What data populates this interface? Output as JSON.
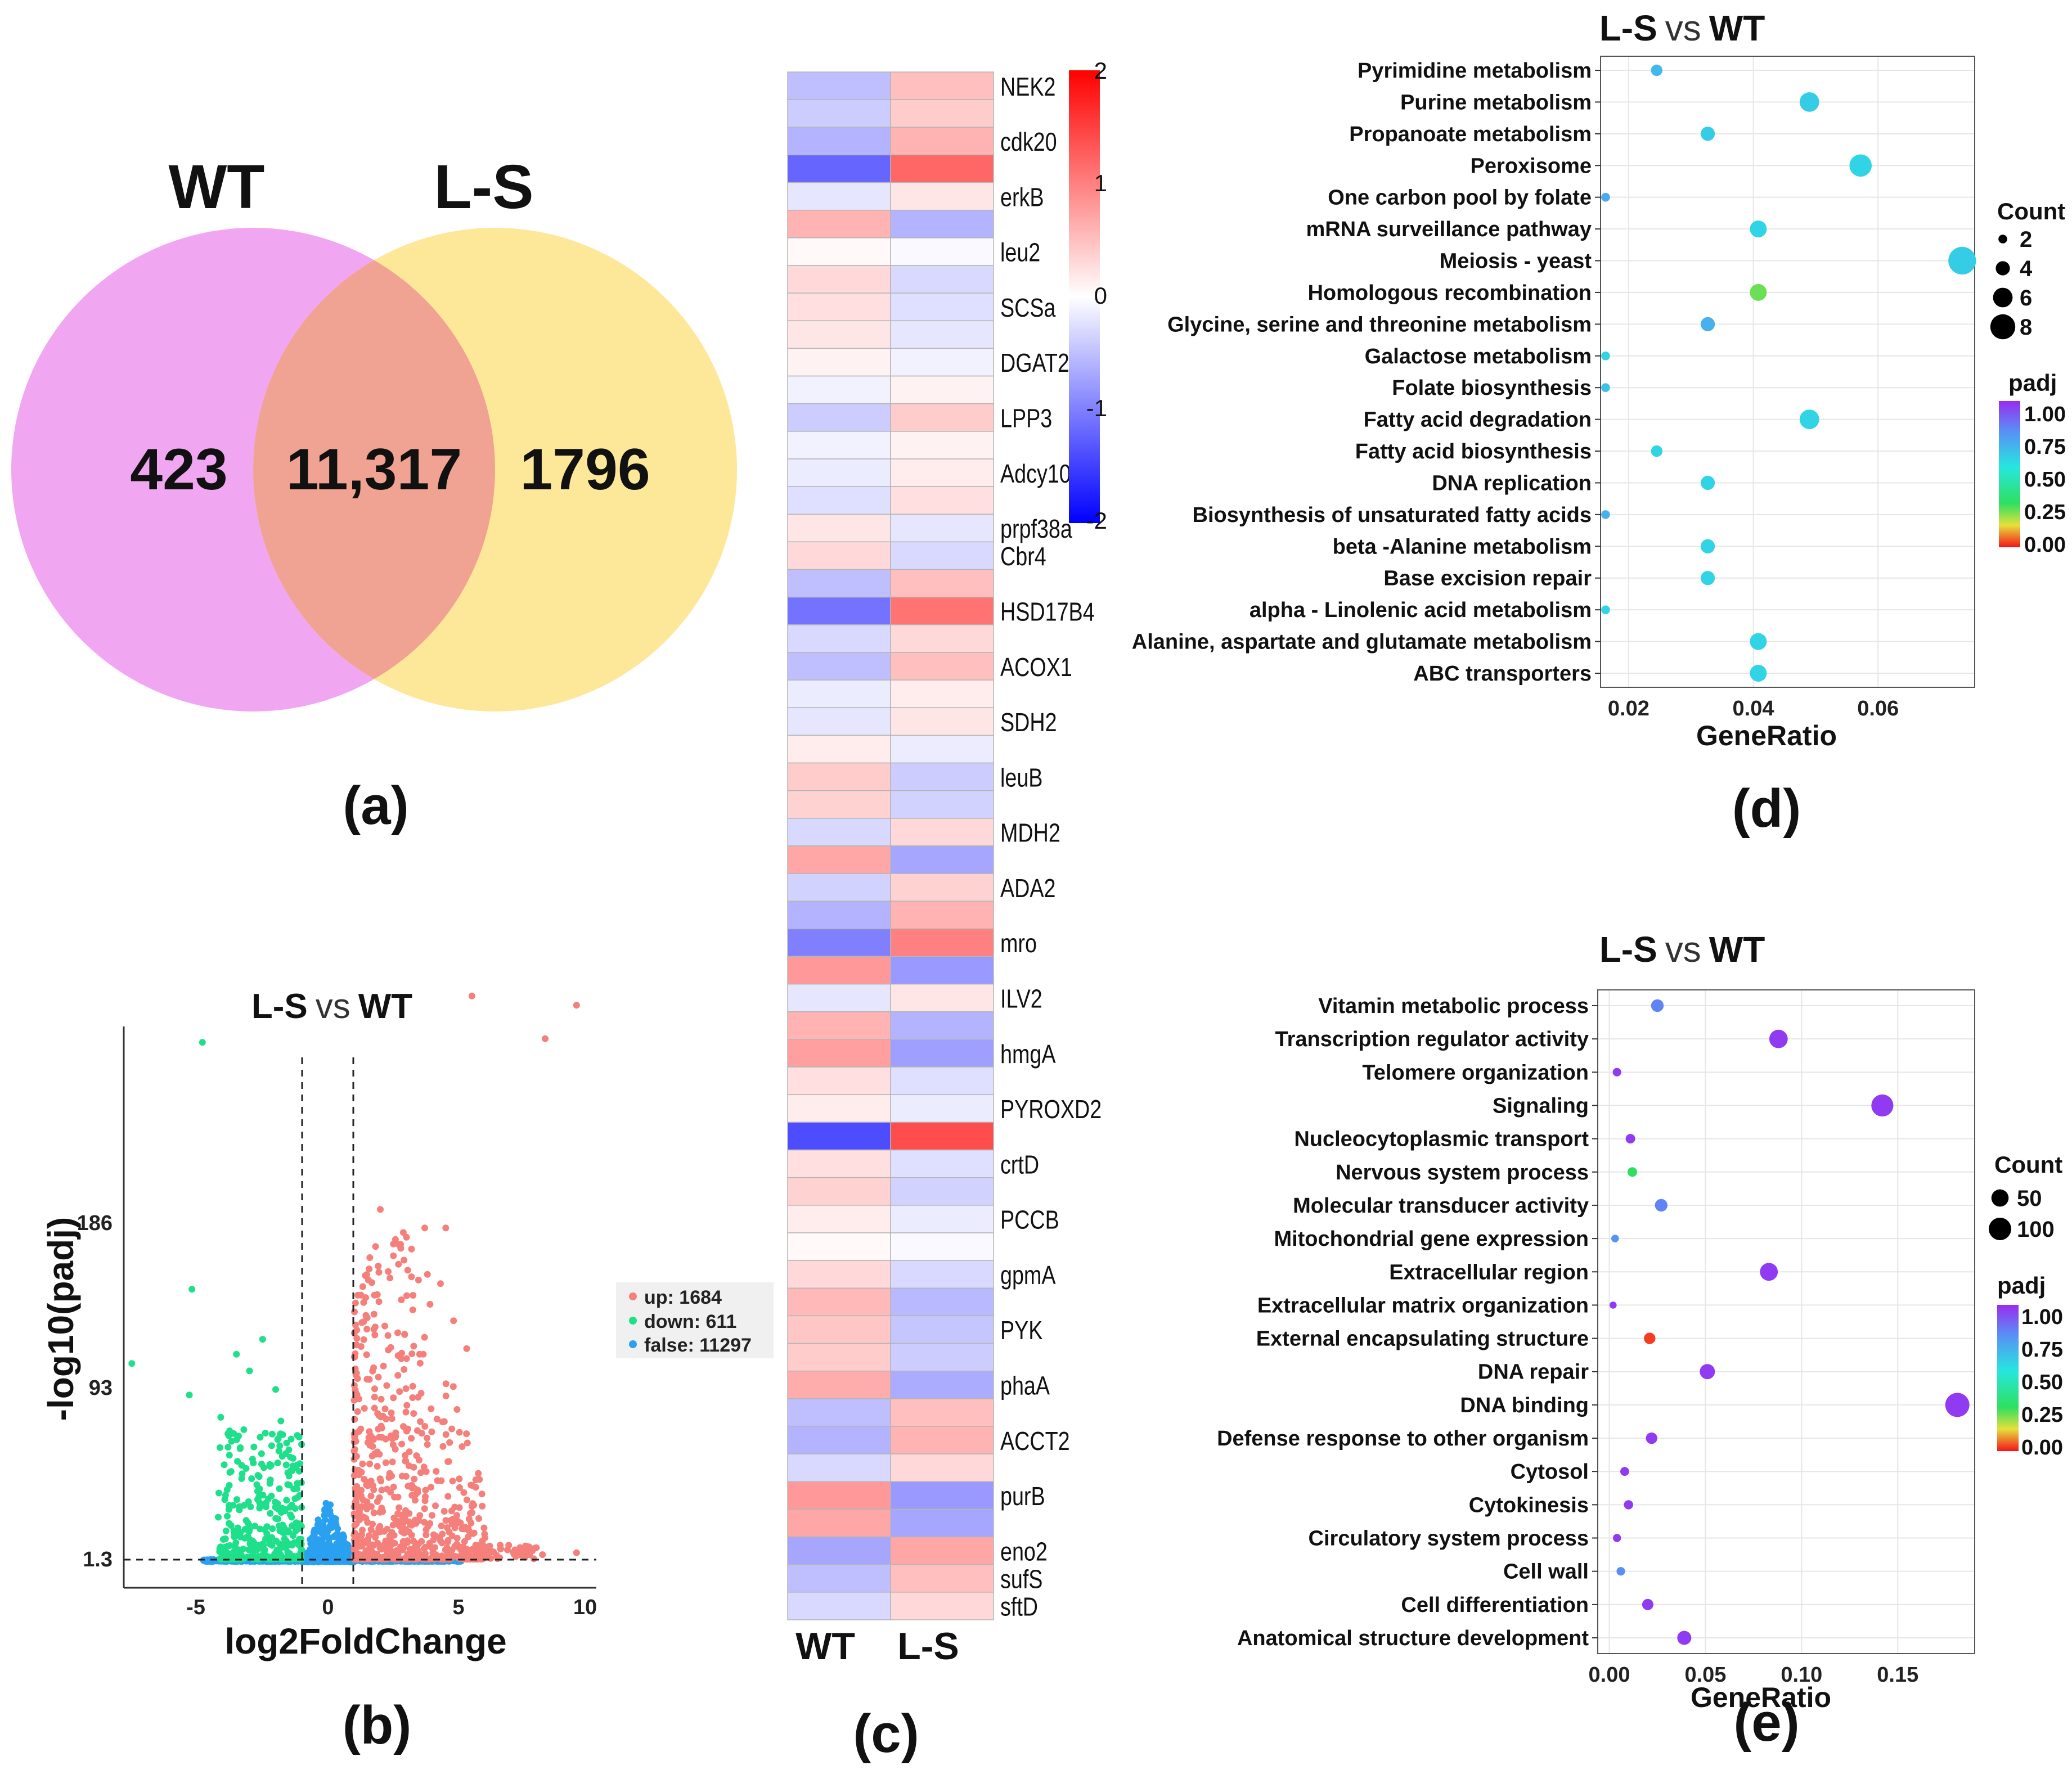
{
  "panels": {
    "a": "(a)",
    "b": "(b)",
    "c": "(c)",
    "d": "(d)",
    "e": "(e)"
  },
  "colors": {
    "wt": "#f1a6f2",
    "ls": "#fde89a",
    "overlap": "#f0a392",
    "up": "#f57f7a",
    "down": "#1fe08a",
    "false": "#2aa0f0"
  },
  "venn": {
    "left_label": "WT",
    "right_label": "L-S",
    "left_only": "423",
    "overlap": "11,317",
    "right_only": "1796"
  },
  "volcano": {
    "title_left": "L-S",
    "title_vs": "vs",
    "title_right": "WT",
    "xlabel": "log2FoldChange",
    "ylabel": "-log10(padj)",
    "xticks": [
      "-5",
      "0",
      "5",
      "10"
    ],
    "yticks": [
      "1.3",
      "93",
      "186"
    ],
    "legend": [
      {
        "label": "up: 1684",
        "color": "#f57f7a"
      },
      {
        "label": "down: 611",
        "color": "#1fe08a"
      },
      {
        "label": "false: 11297",
        "color": "#2aa0f0"
      }
    ]
  },
  "heatmap": {
    "columns": [
      "WT",
      "L-S"
    ],
    "colorbar_ticks": [
      "2",
      "1",
      "0",
      "-1",
      "-2"
    ],
    "colorbar_range": [
      -2,
      2
    ],
    "rows": [
      {
        "gene": "NEK2",
        "wt": -0.5,
        "ls": 0.5
      },
      {
        "gene": "",
        "wt": -0.4,
        "ls": 0.4
      },
      {
        "gene": "cdk20",
        "wt": -0.6,
        "ls": 0.6
      },
      {
        "gene": "",
        "wt": -1.2,
        "ls": 1.2
      },
      {
        "gene": "erkB",
        "wt": -0.2,
        "ls": 0.2
      },
      {
        "gene": "",
        "wt": 0.6,
        "ls": -0.6
      },
      {
        "gene": "leu2",
        "wt": 0.05,
        "ls": -0.05
      },
      {
        "gene": "",
        "wt": 0.3,
        "ls": -0.3
      },
      {
        "gene": "SCSa",
        "wt": 0.25,
        "ls": -0.25
      },
      {
        "gene": "",
        "wt": 0.2,
        "ls": -0.2
      },
      {
        "gene": "DGAT2",
        "wt": 0.1,
        "ls": -0.1
      },
      {
        "gene": "",
        "wt": -0.1,
        "ls": 0.1
      },
      {
        "gene": "LPP3",
        "wt": -0.4,
        "ls": 0.4
      },
      {
        "gene": "",
        "wt": -0.1,
        "ls": 0.1
      },
      {
        "gene": "Adcy10",
        "wt": -0.15,
        "ls": 0.15
      },
      {
        "gene": "",
        "wt": -0.25,
        "ls": 0.25
      },
      {
        "gene": "prpf38a",
        "wt": 0.2,
        "ls": -0.2
      },
      {
        "gene": "Cbr4",
        "wt": 0.3,
        "ls": -0.3
      },
      {
        "gene": "",
        "wt": -0.5,
        "ls": 0.5
      },
      {
        "gene": "HSD17B4",
        "wt": -1.1,
        "ls": 1.1
      },
      {
        "gene": "",
        "wt": -0.3,
        "ls": 0.3
      },
      {
        "gene": "ACOX1",
        "wt": -0.5,
        "ls": 0.5
      },
      {
        "gene": "",
        "wt": -0.15,
        "ls": 0.15
      },
      {
        "gene": "SDH2",
        "wt": -0.2,
        "ls": 0.2
      },
      {
        "gene": "",
        "wt": 0.15,
        "ls": -0.15
      },
      {
        "gene": "leuB",
        "wt": 0.4,
        "ls": -0.4
      },
      {
        "gene": "",
        "wt": 0.35,
        "ls": -0.35
      },
      {
        "gene": "MDH2",
        "wt": -0.3,
        "ls": 0.3
      },
      {
        "gene": "",
        "wt": 0.7,
        "ls": -0.7
      },
      {
        "gene": "ADA2",
        "wt": -0.35,
        "ls": 0.35
      },
      {
        "gene": "",
        "wt": -0.6,
        "ls": 0.6
      },
      {
        "gene": "mro",
        "wt": -1.0,
        "ls": 1.0
      },
      {
        "gene": "",
        "wt": 0.8,
        "ls": -0.8
      },
      {
        "gene": "ILV2",
        "wt": -0.2,
        "ls": 0.2
      },
      {
        "gene": "",
        "wt": 0.6,
        "ls": -0.6
      },
      {
        "gene": "hmgA",
        "wt": 0.75,
        "ls": -0.75
      },
      {
        "gene": "",
        "wt": 0.25,
        "ls": -0.25
      },
      {
        "gene": "PYROXD2",
        "wt": 0.15,
        "ls": -0.15
      },
      {
        "gene": "",
        "wt": -1.4,
        "ls": 1.4
      },
      {
        "gene": "crtD",
        "wt": 0.25,
        "ls": -0.25
      },
      {
        "gene": "",
        "wt": 0.35,
        "ls": -0.35
      },
      {
        "gene": "PCCB",
        "wt": 0.15,
        "ls": -0.15
      },
      {
        "gene": "",
        "wt": 0.05,
        "ls": -0.05
      },
      {
        "gene": "gpmA",
        "wt": 0.3,
        "ls": -0.3
      },
      {
        "gene": "",
        "wt": 0.55,
        "ls": -0.55
      },
      {
        "gene": "PYK",
        "wt": 0.45,
        "ls": -0.45
      },
      {
        "gene": "",
        "wt": 0.4,
        "ls": -0.4
      },
      {
        "gene": "phaA",
        "wt": 0.65,
        "ls": -0.65
      },
      {
        "gene": "",
        "wt": -0.5,
        "ls": 0.5
      },
      {
        "gene": "ACCT2",
        "wt": -0.6,
        "ls": 0.6
      },
      {
        "gene": "",
        "wt": -0.3,
        "ls": 0.3
      },
      {
        "gene": "purB",
        "wt": 0.8,
        "ls": -0.8
      },
      {
        "gene": "",
        "wt": 0.7,
        "ls": -0.7
      },
      {
        "gene": "eno2",
        "wt": -0.7,
        "ls": 0.7
      },
      {
        "gene": "sufS",
        "wt": -0.5,
        "ls": 0.5
      },
      {
        "gene": "sftD",
        "wt": -0.3,
        "ls": 0.3
      }
    ]
  },
  "kegg": {
    "title_left": "L-S",
    "title_vs": "vs",
    "title_right": "WT",
    "xlabel": "GeneRatio",
    "xticks": [
      "0.02",
      "0.04",
      "0.06"
    ],
    "xrange": [
      0.0155,
      0.0755
    ],
    "legend_count_title": "Count",
    "legend_count": [
      "2",
      "4",
      "6",
      "8"
    ],
    "legend_padj_title": "padj",
    "legend_padj": [
      "1.00",
      "0.75",
      "0.50",
      "0.25",
      "0.00"
    ],
    "terms": [
      {
        "name": "Pyrimidine metabolism",
        "ratio": 0.0245,
        "count": 3,
        "padj": 0.68
      },
      {
        "name": "Purine metabolism",
        "ratio": 0.049,
        "count": 6,
        "padj": 0.62
      },
      {
        "name": "Propanoate metabolism",
        "ratio": 0.0327,
        "count": 4,
        "padj": 0.62
      },
      {
        "name": "Peroxisome",
        "ratio": 0.0572,
        "count": 7,
        "padj": 0.6
      },
      {
        "name": "One carbon pool by folate",
        "ratio": 0.0163,
        "count": 2,
        "padj": 0.72
      },
      {
        "name": "mRNA surveillance pathway",
        "ratio": 0.0408,
        "count": 5,
        "padj": 0.6
      },
      {
        "name": "Meiosis - yeast",
        "ratio": 0.0735,
        "count": 9,
        "padj": 0.62
      },
      {
        "name": "Homologous recombination",
        "ratio": 0.0408,
        "count": 5,
        "padj": 0.25
      },
      {
        "name": "Glycine, serine and threonine metabolism",
        "ratio": 0.0327,
        "count": 4,
        "padj": 0.7
      },
      {
        "name": "Galactose metabolism",
        "ratio": 0.0163,
        "count": 2,
        "padj": 0.6
      },
      {
        "name": "Folate biosynthesis",
        "ratio": 0.0163,
        "count": 2,
        "padj": 0.65
      },
      {
        "name": "Fatty acid degradation",
        "ratio": 0.049,
        "count": 6,
        "padj": 0.6
      },
      {
        "name": "Fatty acid biosynthesis",
        "ratio": 0.0245,
        "count": 3,
        "padj": 0.6
      },
      {
        "name": "DNA replication",
        "ratio": 0.0327,
        "count": 4,
        "padj": 0.6
      },
      {
        "name": "Biosynthesis of unsaturated fatty acids",
        "ratio": 0.0163,
        "count": 2,
        "padj": 0.7
      },
      {
        "name": "beta -Alanine metabolism",
        "ratio": 0.0327,
        "count": 4,
        "padj": 0.6
      },
      {
        "name": "Base excision repair",
        "ratio": 0.0327,
        "count": 4,
        "padj": 0.6
      },
      {
        "name": "alpha - Linolenic acid metabolism",
        "ratio": 0.0163,
        "count": 2,
        "padj": 0.6
      },
      {
        "name": "Alanine, aspartate and glutamate metabolism",
        "ratio": 0.0408,
        "count": 5,
        "padj": 0.6
      },
      {
        "name": "ABC transporters",
        "ratio": 0.0408,
        "count": 5,
        "padj": 0.6
      }
    ]
  },
  "go": {
    "title_left": "L-S",
    "title_vs": "vs",
    "title_right": "WT",
    "xlabel": "GeneRatio",
    "xticks": [
      "0.00",
      "0.05",
      "0.10",
      "0.15"
    ],
    "xrange": [
      -0.006,
      0.19
    ],
    "legend_count_title": "Count",
    "legend_count": [
      "50",
      "100"
    ],
    "legend_padj_title": "padj",
    "legend_padj": [
      "1.00",
      "0.75",
      "0.50",
      "0.25",
      "0.00"
    ],
    "terms": [
      {
        "name": "Vitamin metabolic process",
        "ratio": 0.025,
        "count": 20,
        "padj": 0.82
      },
      {
        "name": "Transcription regulator activity",
        "ratio": 0.088,
        "count": 60,
        "padj": 0.97
      },
      {
        "name": "Telomere organization",
        "ratio": 0.004,
        "count": 5,
        "padj": 0.97
      },
      {
        "name": "Signaling",
        "ratio": 0.142,
        "count": 95,
        "padj": 0.97
      },
      {
        "name": "Nucleocytoplasmic transport",
        "ratio": 0.011,
        "count": 8,
        "padj": 0.97
      },
      {
        "name": "Nervous system process",
        "ratio": 0.012,
        "count": 8,
        "padj": 0.3
      },
      {
        "name": "Molecular transducer activity",
        "ratio": 0.027,
        "count": 20,
        "padj": 0.82
      },
      {
        "name": "Mitochondrial gene expression",
        "ratio": 0.003,
        "count": 3,
        "padj": 0.78
      },
      {
        "name": "Extracellular region",
        "ratio": 0.083,
        "count": 55,
        "padj": 0.97
      },
      {
        "name": "Extracellular matrix organization",
        "ratio": 0.002,
        "count": 2,
        "padj": 0.97
      },
      {
        "name": "External encapsulating structure",
        "ratio": 0.021,
        "count": 15,
        "padj": 0.03
      },
      {
        "name": "DNA repair",
        "ratio": 0.051,
        "count": 35,
        "padj": 0.97
      },
      {
        "name": "DNA binding",
        "ratio": 0.181,
        "count": 120,
        "padj": 0.97
      },
      {
        "name": "Defense response to other organism",
        "ratio": 0.022,
        "count": 15,
        "padj": 0.97
      },
      {
        "name": "Cytosol",
        "ratio": 0.008,
        "count": 6,
        "padj": 0.97
      },
      {
        "name": "Cytokinesis",
        "ratio": 0.01,
        "count": 7,
        "padj": 0.97
      },
      {
        "name": "Circulatory system process",
        "ratio": 0.004,
        "count": 4,
        "padj": 0.97
      },
      {
        "name": "Cell wall",
        "ratio": 0.006,
        "count": 5,
        "padj": 0.8
      },
      {
        "name": "Cell differentiation",
        "ratio": 0.02,
        "count": 14,
        "padj": 0.97
      },
      {
        "name": "Anatomical structure development",
        "ratio": 0.039,
        "count": 28,
        "padj": 0.97
      }
    ]
  }
}
